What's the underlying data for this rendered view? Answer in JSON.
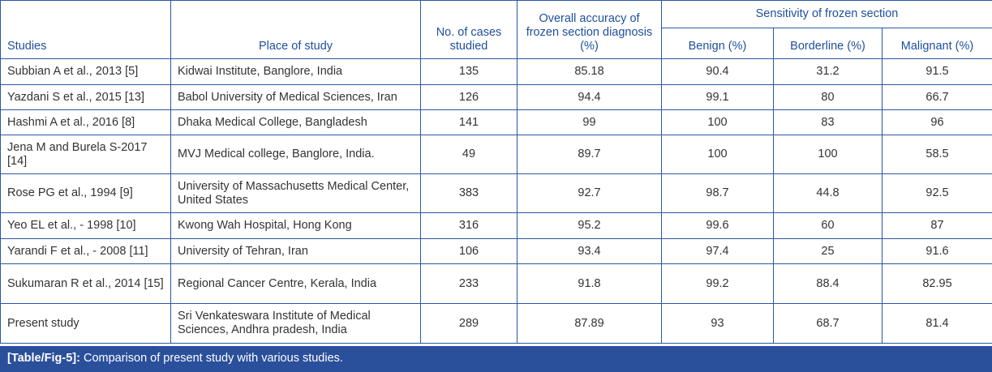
{
  "headers": {
    "studies": "Studies",
    "place": "Place of study",
    "cases": "No. of cases studied",
    "accuracy": "Overall accuracy of frozen section diagnosis (%)",
    "sensitivity": "Sensitivity of frozen section",
    "benign": "Benign (%)",
    "borderline": "Borderline (%)",
    "malignant": "Malignant (%)"
  },
  "rows": [
    {
      "study": "Subbian A et al., 2013 [5]",
      "place": "Kidwai Institute, Banglore, India",
      "cases": "135",
      "accuracy": "85.18",
      "benign": "90.4",
      "borderline": "31.2",
      "malignant": "91.5"
    },
    {
      "study": "Yazdani S et al., 2015 [13]",
      "place": "Babol University of Medical Sciences, Iran",
      "cases": "126",
      "accuracy": "94.4",
      "benign": "99.1",
      "borderline": "80",
      "malignant": "66.7"
    },
    {
      "study": "Hashmi A et al., 2016 [8]",
      "place": "Dhaka Medical College, Bangladesh",
      "cases": "141",
      "accuracy": "99",
      "benign": "100",
      "borderline": "83",
      "malignant": "96"
    },
    {
      "study": "Jena M and Burela S-2017 [14]",
      "place": "MVJ Medical college, Banglore, India.",
      "cases": "49",
      "accuracy": "89.7",
      "benign": "100",
      "borderline": "100",
      "malignant": "58.5"
    },
    {
      "study": "Rose PG et al., 1994 [9]",
      "place": "University of Massachusetts Medical Center, United States",
      "cases": "383",
      "accuracy": "92.7",
      "benign": "98.7",
      "borderline": "44.8",
      "malignant": "92.5"
    },
    {
      "study": "Yeo EL et al., - 1998 [10]",
      "place": "Kwong Wah Hospital, Hong Kong",
      "cases": "316",
      "accuracy": "95.2",
      "benign": "99.6",
      "borderline": "60",
      "malignant": "87"
    },
    {
      "study": "Yarandi F et al., - 2008 [11]",
      "place": "University of Tehran, Iran",
      "cases": "106",
      "accuracy": "93.4",
      "benign": "97.4",
      "borderline": "25",
      "malignant": "91.6"
    },
    {
      "study": "Sukumaran R et al., 2014 [15]",
      "place": "Regional Cancer Centre, Kerala, India",
      "cases": "233",
      "accuracy": "91.8",
      "benign": "99.2",
      "borderline": "88.4",
      "malignant": "82.95"
    },
    {
      "study": "Present study",
      "place": "Sri Venkateswara Institute of Medical Sciences, Andhra pradesh, India",
      "cases": "289",
      "accuracy": "87.89",
      "benign": "93",
      "borderline": "68.7",
      "malignant": "81.4"
    }
  ],
  "caption": {
    "label": "[Table/Fig-5]:",
    "text": " Comparison of present study with various studies."
  }
}
